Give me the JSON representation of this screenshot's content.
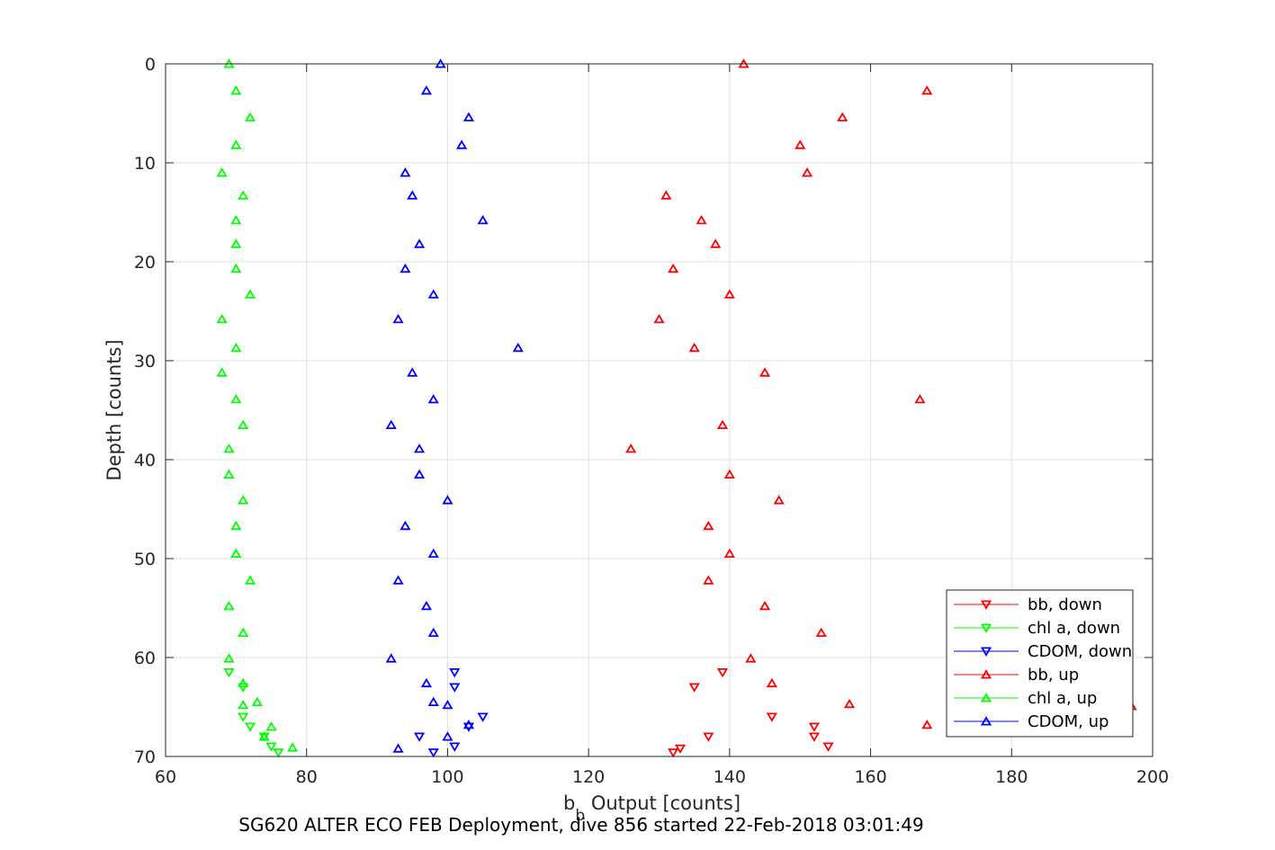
{
  "chart_data": {
    "type": "scatter",
    "xlabel_main": "b",
    "xlabel_sub": "b",
    "xlabel_rest": " Output [counts]",
    "ylabel": "Depth [counts]",
    "caption": "SG620 ALTER ECO FEB Deployment, dive 856 started 22-Feb-2018 03:01:49",
    "xlim": [
      60,
      200
    ],
    "ylim": [
      0,
      70
    ],
    "y_reversed": true,
    "xticks": [
      "60",
      "80",
      "100",
      "120",
      "140",
      "160",
      "180",
      "200"
    ],
    "yticks": [
      "0",
      "10",
      "20",
      "30",
      "40",
      "50",
      "60",
      "70"
    ],
    "grid": true,
    "legend_position": "bottom-right",
    "series": [
      {
        "name": "bb, down",
        "color": "#ff0000",
        "marker": "triangle-down",
        "points": [
          [
            139,
            61.5
          ],
          [
            135,
            63
          ],
          [
            146,
            66
          ],
          [
            152,
            67
          ],
          [
            137,
            68
          ],
          [
            152,
            68
          ],
          [
            133,
            69.2
          ],
          [
            154,
            69
          ],
          [
            132,
            69.6
          ]
        ]
      },
      {
        "name": "chl a, down",
        "color": "#00ff00",
        "marker": "triangle-down",
        "points": [
          [
            69,
            61.5
          ],
          [
            71,
            63
          ],
          [
            71,
            66
          ],
          [
            72,
            67
          ],
          [
            74,
            68
          ],
          [
            75,
            69
          ],
          [
            76,
            69.6
          ]
        ]
      },
      {
        "name": "CDOM, down",
        "color": "#0000ff",
        "marker": "triangle-down",
        "points": [
          [
            101,
            61.5
          ],
          [
            101,
            63
          ],
          [
            105,
            66
          ],
          [
            103,
            67
          ],
          [
            96,
            68
          ],
          [
            101,
            69
          ],
          [
            98,
            69.6
          ]
        ]
      },
      {
        "name": "bb, up",
        "color": "#ff0000",
        "marker": "triangle-up",
        "points": [
          [
            142,
            0
          ],
          [
            168,
            2.7
          ],
          [
            156,
            5.4
          ],
          [
            150,
            8.2
          ],
          [
            151,
            11
          ],
          [
            131,
            13.3
          ],
          [
            136,
            15.8
          ],
          [
            138,
            18.2
          ],
          [
            132,
            20.7
          ],
          [
            140,
            23.3
          ],
          [
            130,
            25.8
          ],
          [
            135,
            28.7
          ],
          [
            145,
            31.2
          ],
          [
            167,
            33.9
          ],
          [
            139,
            36.5
          ],
          [
            126,
            38.9
          ],
          [
            140,
            41.5
          ],
          [
            147,
            44.1
          ],
          [
            137,
            46.7
          ],
          [
            140,
            49.5
          ],
          [
            137,
            52.2
          ],
          [
            145,
            54.8
          ],
          [
            153,
            57.5
          ],
          [
            143,
            60.1
          ],
          [
            146,
            62.6
          ],
          [
            157,
            64.7
          ],
          [
            197,
            64.9
          ],
          [
            168,
            66.8
          ]
        ]
      },
      {
        "name": "chl a, up",
        "color": "#00ff00",
        "marker": "triangle-up",
        "points": [
          [
            69,
            0
          ],
          [
            70,
            2.7
          ],
          [
            72,
            5.4
          ],
          [
            70,
            8.2
          ],
          [
            68,
            11
          ],
          [
            71,
            13.3
          ],
          [
            70,
            15.8
          ],
          [
            70,
            18.2
          ],
          [
            70,
            20.7
          ],
          [
            72,
            23.3
          ],
          [
            68,
            25.8
          ],
          [
            70,
            28.7
          ],
          [
            68,
            31.2
          ],
          [
            70,
            33.9
          ],
          [
            71,
            36.5
          ],
          [
            69,
            38.9
          ],
          [
            69,
            41.5
          ],
          [
            71,
            44.1
          ],
          [
            70,
            46.7
          ],
          [
            70,
            49.5
          ],
          [
            72,
            52.2
          ],
          [
            69,
            54.8
          ],
          [
            71,
            57.5
          ],
          [
            69,
            60.1
          ],
          [
            71,
            62.6
          ],
          [
            73,
            64.5
          ],
          [
            71,
            64.8
          ],
          [
            75,
            67
          ],
          [
            74,
            68
          ],
          [
            78,
            69.1
          ]
        ]
      },
      {
        "name": "CDOM, up",
        "color": "#0000ff",
        "marker": "triangle-up",
        "points": [
          [
            99,
            0
          ],
          [
            97,
            2.7
          ],
          [
            103,
            5.4
          ],
          [
            102,
            8.2
          ],
          [
            94,
            11
          ],
          [
            95,
            13.3
          ],
          [
            105,
            15.8
          ],
          [
            96,
            18.2
          ],
          [
            94,
            20.7
          ],
          [
            98,
            23.3
          ],
          [
            93,
            25.8
          ],
          [
            110,
            28.7
          ],
          [
            95,
            31.2
          ],
          [
            98,
            33.9
          ],
          [
            92,
            36.5
          ],
          [
            96,
            38.9
          ],
          [
            96,
            41.5
          ],
          [
            100,
            44.1
          ],
          [
            94,
            46.7
          ],
          [
            98,
            49.5
          ],
          [
            93,
            52.2
          ],
          [
            97,
            54.8
          ],
          [
            98,
            57.5
          ],
          [
            92,
            60.1
          ],
          [
            97,
            62.6
          ],
          [
            98,
            64.5
          ],
          [
            100,
            64.8
          ],
          [
            103,
            66.8
          ],
          [
            100,
            68
          ],
          [
            93,
            69.2
          ]
        ]
      }
    ]
  }
}
